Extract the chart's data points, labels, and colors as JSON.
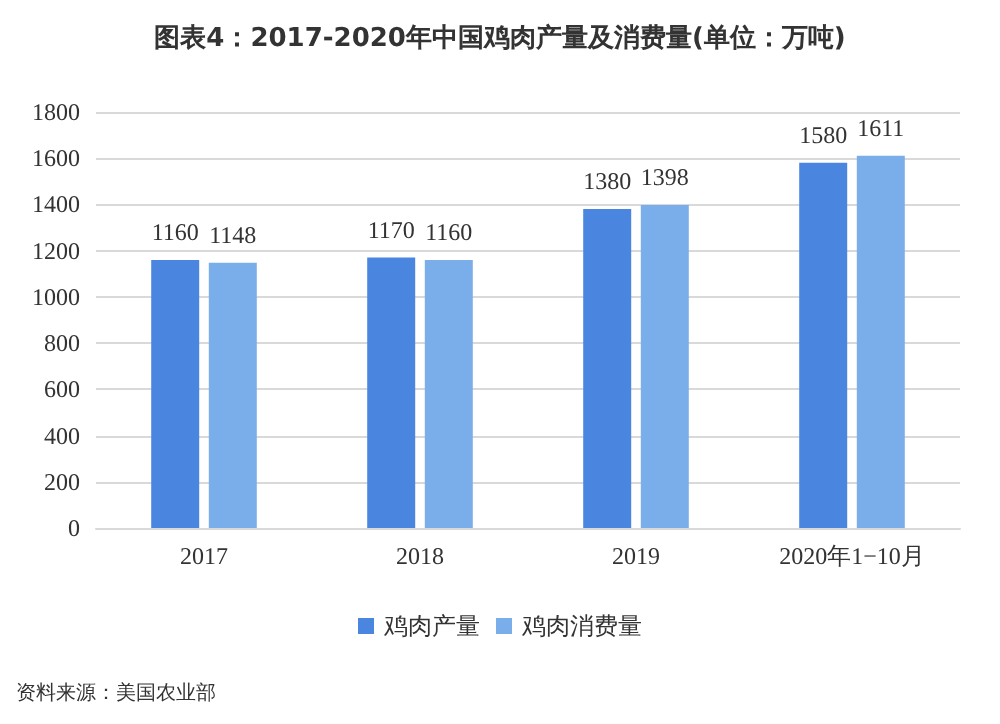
{
  "chart_data": {
    "type": "bar",
    "title": "图表4：2017-2020年中国鸡肉产量及消费量(单位：万吨)",
    "categories": [
      "2017",
      "2018",
      "2019",
      "2020年1−10月"
    ],
    "series": [
      {
        "name": "鸡肉产量",
        "color": "#4a86e0",
        "values": [
          1160,
          1170,
          1380,
          1580
        ]
      },
      {
        "name": "鸡肉消费量",
        "color": "#7aaeea",
        "values": [
          1148,
          1160,
          1398,
          1611
        ]
      }
    ],
    "ylim": [
      0,
      1800
    ],
    "yticks": [
      0,
      200,
      400,
      600,
      800,
      1000,
      1200,
      1400,
      1600,
      1800
    ],
    "grid": "y",
    "legend": "bottom",
    "data_labels": true,
    "annotations": [
      "资料来源：美国农业部"
    ]
  }
}
